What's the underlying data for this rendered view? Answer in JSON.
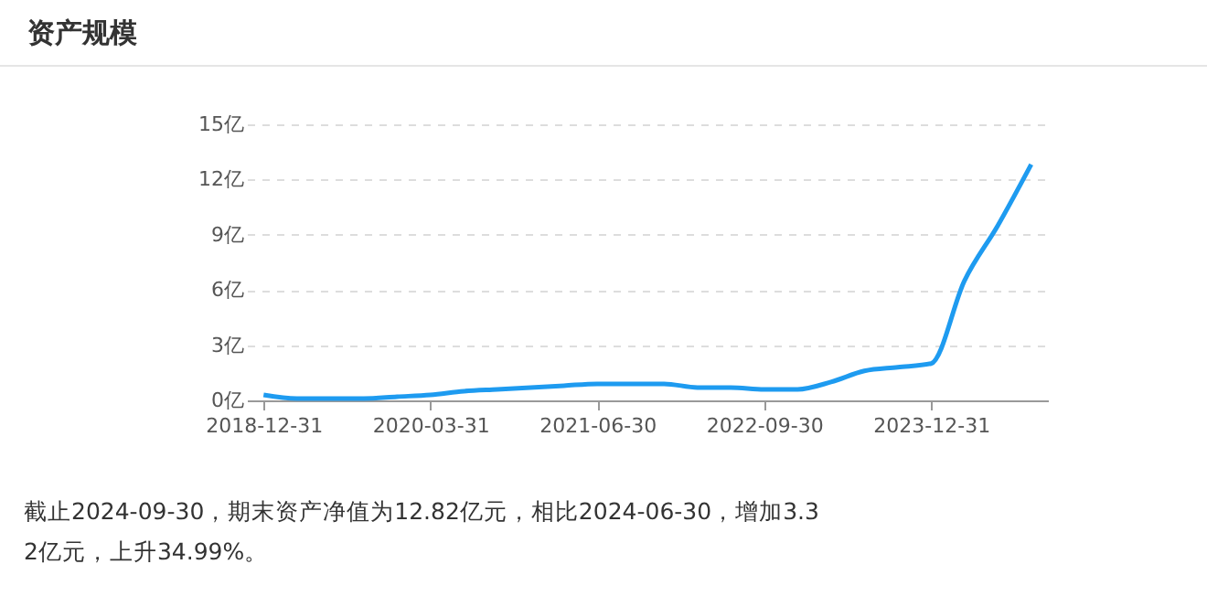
{
  "chart_data": {
    "type": "line",
    "title": "资产规模",
    "categories": [
      "2018-12-31",
      null,
      null,
      null,
      null,
      "2020-03-31",
      null,
      null,
      null,
      null,
      "2021-06-30",
      null,
      null,
      null,
      null,
      "2022-09-30",
      null,
      null,
      null,
      null,
      "2023-12-31",
      null,
      null,
      null
    ],
    "series": [
      {
        "color": "#1e9bf0",
        "values": [
          0.3,
          0.1,
          0.1,
          0.1,
          0.2,
          0.3,
          0.5,
          0.6,
          0.7,
          0.8,
          0.9,
          0.9,
          0.9,
          0.7,
          0.7,
          0.6,
          0.6,
          1.0,
          1.6,
          1.8,
          2.0,
          6.5,
          9.5,
          12.82
        ]
      }
    ],
    "ylim": [
      0,
      15
    ],
    "yticks": [
      {
        "value": 0,
        "label": "0亿"
      },
      {
        "value": 3,
        "label": "3亿"
      },
      {
        "value": 6,
        "label": "6亿"
      },
      {
        "value": 9,
        "label": "9亿"
      },
      {
        "value": 12,
        "label": "12亿"
      },
      {
        "value": 15,
        "label": "15亿"
      }
    ],
    "grid": "y",
    "marker": "none",
    "line_style": "solid",
    "annotations": [
      "截止2024-09-30，期末资产净值为12.82亿元，相比2024-06-30，增加3.32亿元，上升34.99%。"
    ]
  }
}
